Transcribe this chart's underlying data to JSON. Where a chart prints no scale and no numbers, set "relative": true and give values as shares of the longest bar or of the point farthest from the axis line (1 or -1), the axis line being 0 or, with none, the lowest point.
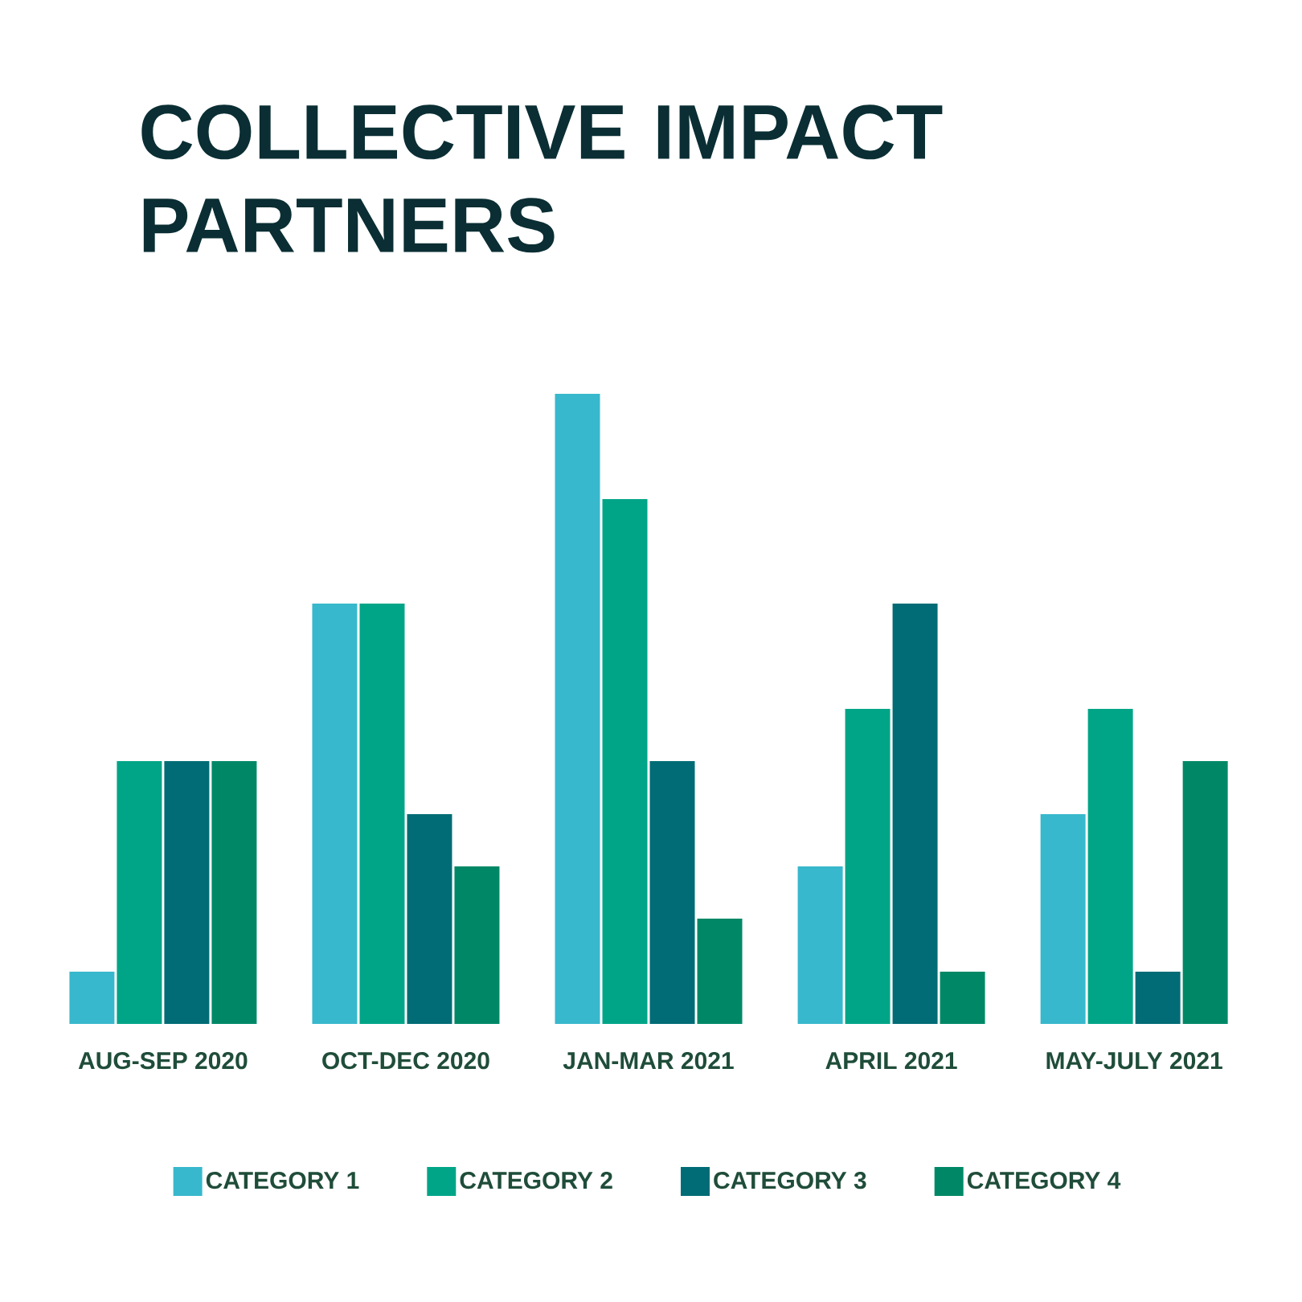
{
  "chart_data": {
    "type": "bar",
    "title": "COLLECTIVE IMPACT PARTNERS",
    "relative": true,
    "legend": "bottom",
    "categories": [
      "AUG-SEP 2020",
      "OCT-DEC 2020",
      "JAN-MAR 2021",
      "APRIL 2021",
      "MAY-JULY 2021"
    ],
    "series": [
      {
        "name": "CATEGORY 1",
        "color": "#38b8cc",
        "values": [
          0.083,
          0.667,
          1,
          0.25,
          0.333
        ]
      },
      {
        "name": "CATEGORY 2",
        "color": "#00a587",
        "values": [
          0.417,
          0.667,
          0.833,
          0.5,
          0.5
        ]
      },
      {
        "name": "CATEGORY 3",
        "color": "#016c75",
        "values": [
          0.417,
          0.333,
          0.417,
          0.667,
          0.083
        ]
      },
      {
        "name": "CATEGORY 4",
        "color": "#008866",
        "values": [
          0.417,
          0.25,
          0.167,
          0.083,
          0.417
        ]
      }
    ]
  }
}
